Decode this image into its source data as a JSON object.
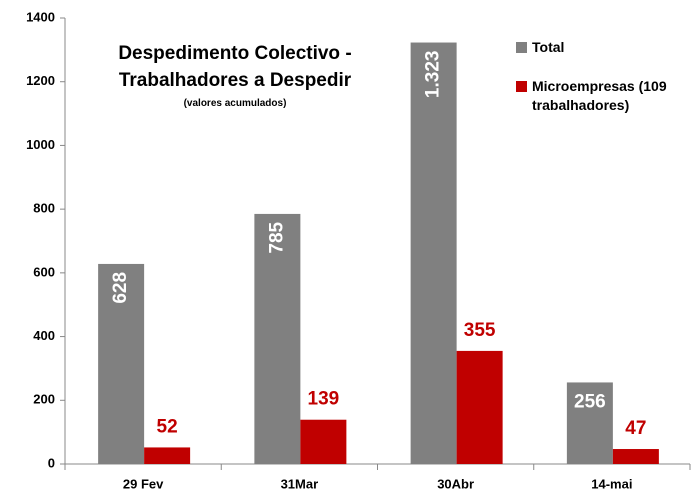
{
  "chart_data": {
    "type": "bar",
    "title": "Despedimento Colectivo - Trabalhadores a Despedir",
    "subtitle": "(valores acumulados)",
    "categories": [
      "29 Fev",
      "31Mar",
      "30Abr",
      "14-mai"
    ],
    "series": [
      {
        "name": "Total",
        "color": "#808080",
        "values": [
          628,
          785,
          1323,
          256
        ],
        "value_labels": [
          "628",
          "785",
          "1.323",
          "256"
        ]
      },
      {
        "name": "Microempresas (109 trabalhadores)",
        "color": "#c00000",
        "values": [
          52,
          139,
          355,
          47
        ]
      }
    ],
    "ylim": [
      0,
      1400
    ],
    "yticks": [
      0,
      200,
      400,
      600,
      800,
      1000,
      1200,
      1400
    ],
    "grid": false,
    "legend": "top-right"
  }
}
